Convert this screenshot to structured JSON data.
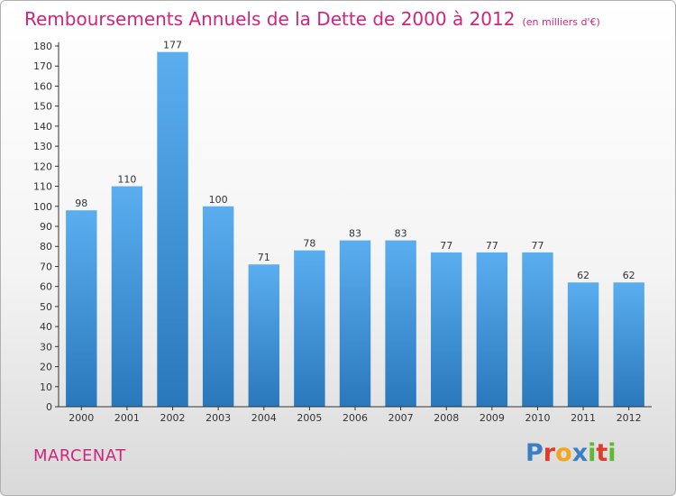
{
  "header": {
    "title": "Remboursements Annuels de la Dette de 2000 à 2012",
    "subtitle": "(en milliers d'€)"
  },
  "footer": {
    "city": "MARCENAT",
    "logo_letters": [
      {
        "ch": "P",
        "color": "#3a7fc4"
      },
      {
        "ch": "r",
        "color": "#e03a2c"
      },
      {
        "ch": "o",
        "color": "#f2a51e"
      },
      {
        "ch": "x",
        "color": "#3a7fc4"
      },
      {
        "ch": "i",
        "color": "#5fb832"
      },
      {
        "ch": "t",
        "color": "#e03a2c"
      },
      {
        "ch": "i",
        "color": "#5fb832"
      }
    ]
  },
  "colors": {
    "bar_top": "#5aaef0",
    "bar_bottom": "#2a78bc",
    "accent": "#d0257a"
  },
  "chart_data": {
    "type": "bar",
    "categories": [
      "2000",
      "2001",
      "2002",
      "2003",
      "2004",
      "2005",
      "2006",
      "2007",
      "2008",
      "2009",
      "2010",
      "2011",
      "2012"
    ],
    "values": [
      98,
      110,
      177,
      100,
      71,
      78,
      83,
      83,
      77,
      77,
      77,
      62,
      62
    ],
    "ylim": [
      0,
      180
    ],
    "ytick_step": 10,
    "grid": false,
    "legend": "none"
  }
}
